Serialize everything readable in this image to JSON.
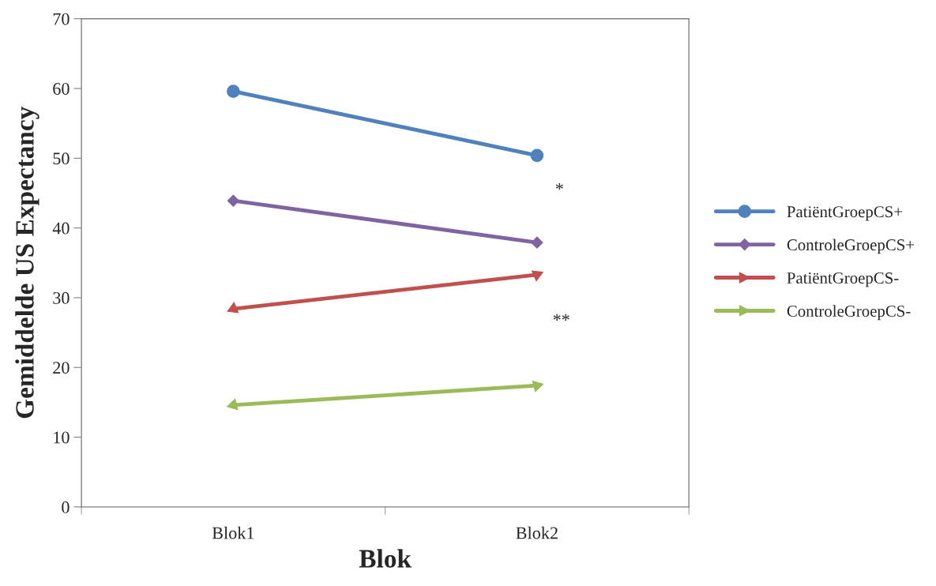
{
  "chart_data": {
    "type": "line",
    "xlabel": "Blok",
    "ylabel": "Gemiddelde US Expectancy",
    "categories": [
      "Blok1",
      "Blok2"
    ],
    "series": [
      {
        "name": "PatiëntGroepCS+",
        "color": "#4f81bd",
        "values": [
          59.6,
          50.4
        ],
        "marker": "circle"
      },
      {
        "name": "ControleGroepCS+",
        "color": "#8064a2",
        "values": [
          43.9,
          37.9
        ],
        "marker": "diamond"
      },
      {
        "name": "PatiëntGroepCS-",
        "color": "#c0504d",
        "values": [
          28.4,
          33.3
        ],
        "marker": "triangle"
      },
      {
        "name": "ControleGroepCS-",
        "color": "#9bbb59",
        "values": [
          14.6,
          17.4
        ],
        "marker": "triangle"
      }
    ],
    "ylim": [
      0,
      70
    ],
    "yticks": [
      0,
      10,
      20,
      30,
      40,
      50,
      60,
      70
    ],
    "grid": false,
    "legend": "right",
    "annotations": [
      "*",
      "**"
    ]
  }
}
